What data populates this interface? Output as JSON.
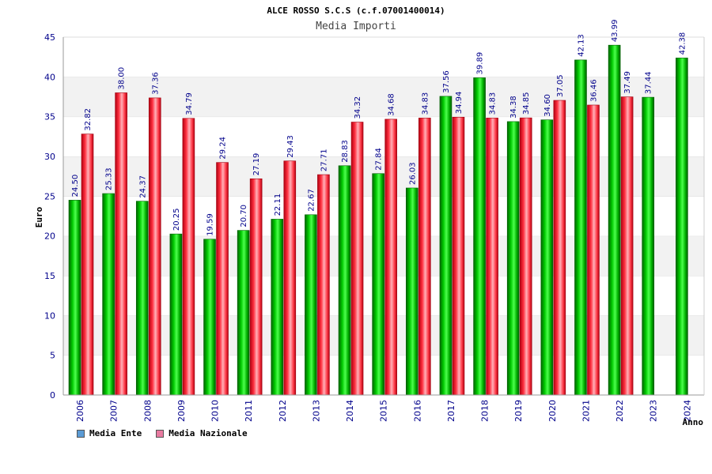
{
  "chart_data": {
    "type": "bar",
    "title": "ALCE ROSSO S.C.S (c.f.07001400014)",
    "subtitle": "Media Importi",
    "xlabel": "Anno",
    "ylabel": "Euro",
    "ylim": [
      0,
      45
    ],
    "yticks": [
      0,
      5,
      10,
      15,
      20,
      25,
      30,
      35,
      40,
      45
    ],
    "grid": "horizontal",
    "legend_position": "bottom-left",
    "categories": [
      "2006",
      "2007",
      "2008",
      "2009",
      "2010",
      "2011",
      "2012",
      "2013",
      "2014",
      "2015",
      "2016",
      "2017",
      "2018",
      "2019",
      "2020",
      "2021",
      "2022",
      "2023",
      "2024"
    ],
    "series": [
      {
        "name": "Media Ente",
        "color": "#00b400",
        "legend_color": "#5b9bd5",
        "values": [
          24.5,
          25.33,
          24.37,
          20.25,
          19.59,
          20.7,
          22.11,
          22.67,
          28.83,
          27.84,
          26.03,
          37.56,
          39.89,
          34.38,
          34.6,
          42.13,
          43.99,
          37.44,
          42.38
        ],
        "labels": [
          "24.50",
          "25.33",
          "24.37",
          "20.25",
          "19.59",
          "20.70",
          "22.11",
          "22.67",
          "28.83",
          "27.84",
          "26.03",
          "37.56",
          "39.89",
          "34.38",
          "34.60",
          "42.13",
          "43.99",
          "37.44",
          "42.38"
        ]
      },
      {
        "name": "Media Nazionale",
        "color": "#e8202a",
        "legend_color": "#e87aa0",
        "values": [
          32.82,
          38.0,
          37.36,
          34.79,
          29.24,
          27.19,
          29.43,
          27.71,
          34.32,
          34.68,
          34.83,
          34.94,
          34.83,
          34.85,
          37.05,
          36.46,
          37.49,
          null,
          null
        ],
        "labels": [
          "32.82",
          "38.00",
          "37.36",
          "34.79",
          "29.24",
          "27.19",
          "29.43",
          "27.71",
          "34.32",
          "34.68",
          "34.83",
          "34.94",
          "34.83",
          "34.85",
          "37.05",
          "36.46",
          "37.49",
          "",
          ""
        ]
      }
    ]
  }
}
